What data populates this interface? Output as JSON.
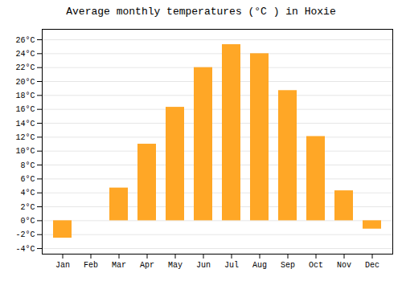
{
  "chart_data": {
    "type": "bar",
    "title": "Average monthly temperatures (°C ) in Hoxie",
    "categories": [
      "Jan",
      "Feb",
      "Mar",
      "Apr",
      "May",
      "Jun",
      "Jul",
      "Aug",
      "Sep",
      "Oct",
      "Nov",
      "Dec"
    ],
    "values": [
      -2.5,
      0,
      4.7,
      11.0,
      16.3,
      22.0,
      25.3,
      24.0,
      18.7,
      12.1,
      4.3,
      -1.2
    ],
    "color": "#FFA726",
    "ylim": [
      -4.8,
      27.5
    ],
    "yticks": [
      {
        "value": -4,
        "label": "-4°C"
      },
      {
        "value": -2,
        "label": "-2°C"
      },
      {
        "value": 0,
        "label": "0°C"
      },
      {
        "value": 2,
        "label": "2°C"
      },
      {
        "value": 4,
        "label": "4°C"
      },
      {
        "value": 6,
        "label": "6°C"
      },
      {
        "value": 8,
        "label": "8°C"
      },
      {
        "value": 10,
        "label": "10°C"
      },
      {
        "value": 12,
        "label": "12°C"
      },
      {
        "value": 14,
        "label": "14°C"
      },
      {
        "value": 16,
        "label": "16°C"
      },
      {
        "value": 18,
        "label": "18°C"
      },
      {
        "value": 20,
        "label": "20°C"
      },
      {
        "value": 22,
        "label": "22°C"
      },
      {
        "value": 24,
        "label": "24°C"
      },
      {
        "value": 26,
        "label": "26°C"
      }
    ],
    "grid": true
  }
}
